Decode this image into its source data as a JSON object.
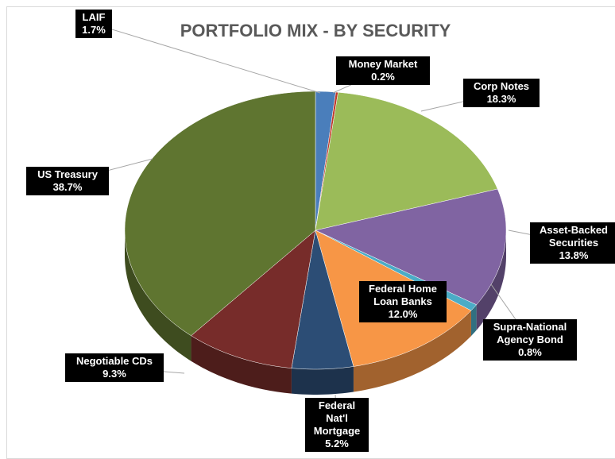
{
  "chart_data": {
    "type": "pie",
    "title": "PORTFOLIO MIX - BY SECURITY",
    "categories": [
      "LAIF",
      "Money Market",
      "Corp Notes",
      "Asset-Backed Securities",
      "Supra-National Agency Bond",
      "Federal Home Loan Banks",
      "Federal Nat'l Mortgage",
      "Negotiable CDs",
      "US Treasury"
    ],
    "values": [
      1.7,
      0.2,
      18.3,
      13.8,
      0.8,
      12.0,
      5.2,
      9.3,
      38.7
    ],
    "value_labels": [
      "1.7%",
      "0.2%",
      "18.3%",
      "13.8%",
      "0.8%",
      "12.0%",
      "5.2%",
      "9.3%",
      "38.7%"
    ],
    "colors": [
      "#4a7ebb",
      "#c0392b",
      "#9bbb59",
      "#8064a2",
      "#4bacc6",
      "#f79646",
      "#2c4d75",
      "#772c2a",
      "#5f7530"
    ]
  }
}
